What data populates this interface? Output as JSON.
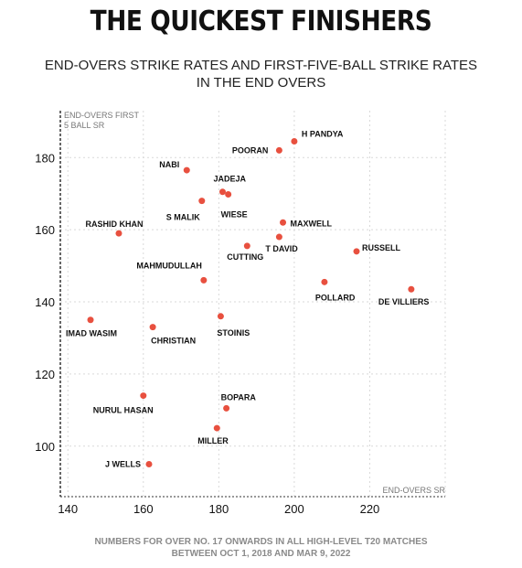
{
  "page": {
    "title": "THE QUICKEST FINISHERS",
    "subtitle": "END-OVERS STRIKE RATES AND FIRST-FIVE-BALL STRIKE RATES\nIN THE END OVERS",
    "footnote": "NUMBERS FOR OVER NO. 17 ONWARDS IN ALL HIGH-LEVEL T20 MATCHES\nBETWEEN OCT 1, 2018 AND MAR 9, 2022"
  },
  "colors": {
    "point": "#e8503f",
    "grid": "#d9d9d9",
    "axis": "#333333",
    "label": "#111111",
    "axis_title": "#777777"
  },
  "chart_data": {
    "type": "scatter",
    "title": "THE QUICKEST FINISHERS",
    "subtitle": "END-OVERS STRIKE RATES AND FIRST-FIVE-BALL STRIKE RATES IN THE END OVERS",
    "xlabel": "END-OVERS SR",
    "ylabel": "END-OVERS FIRST 5 BALL SR",
    "ylabel_lines": [
      "END-OVERS FIRST",
      "5 BALL SR"
    ],
    "xlim": [
      138,
      240
    ],
    "ylim": [
      86,
      193
    ],
    "xticks": [
      140,
      160,
      180,
      200,
      220
    ],
    "yticks": [
      100,
      120,
      140,
      160,
      180
    ],
    "grid": true,
    "points": [
      {
        "label": "H PANDYA",
        "x": 200,
        "y": 184.5
      },
      {
        "label": "POORAN",
        "x": 196,
        "y": 182
      },
      {
        "label": "NABI",
        "x": 171.5,
        "y": 176.5
      },
      {
        "label": "JADEJA",
        "x": 181,
        "y": 170.5
      },
      {
        "label": "WIESE",
        "x": 182.5,
        "y": 169.8
      },
      {
        "label": "S MALIK",
        "x": 175.5,
        "y": 168
      },
      {
        "label": "MAXWELL",
        "x": 197,
        "y": 162
      },
      {
        "label": "RASHID KHAN",
        "x": 153.5,
        "y": 159
      },
      {
        "label": "T DAVID",
        "x": 196,
        "y": 158
      },
      {
        "label": "CUTTING",
        "x": 187.5,
        "y": 155.5
      },
      {
        "label": "RUSSELL",
        "x": 216.5,
        "y": 154
      },
      {
        "label": "MAHMUDULLAH",
        "x": 176,
        "y": 146
      },
      {
        "label": "POLLARD",
        "x": 208,
        "y": 145.5
      },
      {
        "label": "DE VILLIERS",
        "x": 231,
        "y": 143.5
      },
      {
        "label": "STOINIS",
        "x": 180.5,
        "y": 136
      },
      {
        "label": "IMAD WASIM",
        "x": 146,
        "y": 135
      },
      {
        "label": "CHRISTIAN",
        "x": 162.5,
        "y": 133
      },
      {
        "label": "NURUL HASAN",
        "x": 160,
        "y": 114
      },
      {
        "label": "BOPARA",
        "x": 182,
        "y": 110.5
      },
      {
        "label": "MILLER",
        "x": 179.5,
        "y": 105
      },
      {
        "label": "J WELLS",
        "x": 161.5,
        "y": 95
      }
    ]
  }
}
